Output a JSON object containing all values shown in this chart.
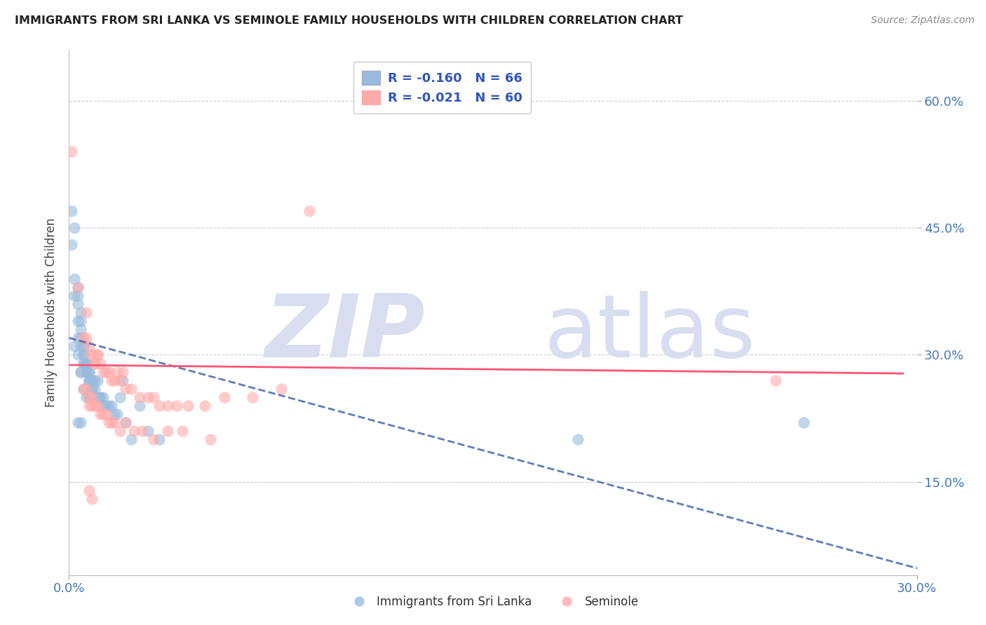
{
  "title": "IMMIGRANTS FROM SRI LANKA VS SEMINOLE FAMILY HOUSEHOLDS WITH CHILDREN CORRELATION CHART",
  "source": "Source: ZipAtlas.com",
  "ylabel": "Family Households with Children",
  "ytick_labels": [
    "60.0%",
    "45.0%",
    "30.0%",
    "15.0%"
  ],
  "ytick_values": [
    0.6,
    0.45,
    0.3,
    0.15
  ],
  "xtick_labels": [
    "0.0%",
    "30.0%"
  ],
  "xtick_values": [
    0.0,
    0.3
  ],
  "xlim": [
    0.0,
    0.3
  ],
  "ylim": [
    0.04,
    0.66
  ],
  "legend_r1": "R = -0.160",
  "legend_n1": "N = 66",
  "legend_r2": "R = -0.021",
  "legend_n2": "N = 60",
  "legend_label1": "Immigrants from Sri Lanka",
  "legend_label2": "Seminole",
  "blue_color": "#99BBDD",
  "pink_color": "#FFAAAA",
  "blue_line_color": "#4466AA",
  "pink_line_color": "#FF5577",
  "legend_text_color": "#3355BB",
  "tick_color": "#4477BB",
  "blue_scatter_x": [
    0.001,
    0.001,
    0.002,
    0.002,
    0.002,
    0.003,
    0.003,
    0.003,
    0.003,
    0.004,
    0.004,
    0.004,
    0.004,
    0.004,
    0.005,
    0.005,
    0.005,
    0.005,
    0.005,
    0.006,
    0.006,
    0.006,
    0.006,
    0.007,
    0.007,
    0.007,
    0.007,
    0.008,
    0.008,
    0.008,
    0.009,
    0.009,
    0.01,
    0.01,
    0.011,
    0.011,
    0.012,
    0.012,
    0.013,
    0.014,
    0.015,
    0.016,
    0.017,
    0.018,
    0.019,
    0.02,
    0.022,
    0.025,
    0.028,
    0.032,
    0.002,
    0.003,
    0.004,
    0.005,
    0.006,
    0.007,
    0.008,
    0.003,
    0.004,
    0.005,
    0.006,
    0.007,
    0.003,
    0.004,
    0.18,
    0.26
  ],
  "blue_scatter_y": [
    0.47,
    0.43,
    0.45,
    0.39,
    0.37,
    0.38,
    0.37,
    0.36,
    0.34,
    0.35,
    0.34,
    0.33,
    0.32,
    0.31,
    0.31,
    0.31,
    0.3,
    0.3,
    0.29,
    0.29,
    0.29,
    0.28,
    0.28,
    0.28,
    0.28,
    0.27,
    0.27,
    0.27,
    0.27,
    0.26,
    0.27,
    0.26,
    0.27,
    0.25,
    0.25,
    0.25,
    0.24,
    0.25,
    0.24,
    0.24,
    0.24,
    0.23,
    0.23,
    0.25,
    0.27,
    0.22,
    0.2,
    0.24,
    0.21,
    0.2,
    0.31,
    0.3,
    0.28,
    0.29,
    0.29,
    0.27,
    0.26,
    0.32,
    0.28,
    0.26,
    0.25,
    0.25,
    0.22,
    0.22,
    0.2,
    0.22
  ],
  "pink_scatter_x": [
    0.001,
    0.003,
    0.005,
    0.006,
    0.006,
    0.007,
    0.008,
    0.008,
    0.009,
    0.009,
    0.01,
    0.01,
    0.011,
    0.012,
    0.013,
    0.014,
    0.015,
    0.016,
    0.017,
    0.018,
    0.019,
    0.02,
    0.022,
    0.025,
    0.028,
    0.03,
    0.032,
    0.035,
    0.038,
    0.042,
    0.048,
    0.055,
    0.065,
    0.075,
    0.085,
    0.005,
    0.006,
    0.007,
    0.007,
    0.008,
    0.008,
    0.009,
    0.01,
    0.011,
    0.012,
    0.013,
    0.014,
    0.015,
    0.016,
    0.018,
    0.02,
    0.023,
    0.026,
    0.03,
    0.035,
    0.04,
    0.05,
    0.25,
    0.007,
    0.008
  ],
  "pink_scatter_y": [
    0.54,
    0.38,
    0.32,
    0.32,
    0.35,
    0.31,
    0.3,
    0.3,
    0.29,
    0.29,
    0.3,
    0.3,
    0.29,
    0.28,
    0.28,
    0.28,
    0.27,
    0.27,
    0.28,
    0.27,
    0.28,
    0.26,
    0.26,
    0.25,
    0.25,
    0.25,
    0.24,
    0.24,
    0.24,
    0.24,
    0.24,
    0.25,
    0.25,
    0.26,
    0.47,
    0.26,
    0.26,
    0.25,
    0.24,
    0.25,
    0.24,
    0.24,
    0.24,
    0.23,
    0.23,
    0.23,
    0.22,
    0.22,
    0.22,
    0.21,
    0.22,
    0.21,
    0.21,
    0.2,
    0.21,
    0.21,
    0.2,
    0.27,
    0.14,
    0.13
  ],
  "blue_line_x": [
    0.0,
    0.3
  ],
  "blue_line_y": [
    0.32,
    0.048
  ],
  "pink_line_x": [
    0.0,
    0.295
  ],
  "pink_line_y": [
    0.288,
    0.278
  ],
  "figsize": [
    14.06,
    8.92
  ],
  "dpi": 100
}
